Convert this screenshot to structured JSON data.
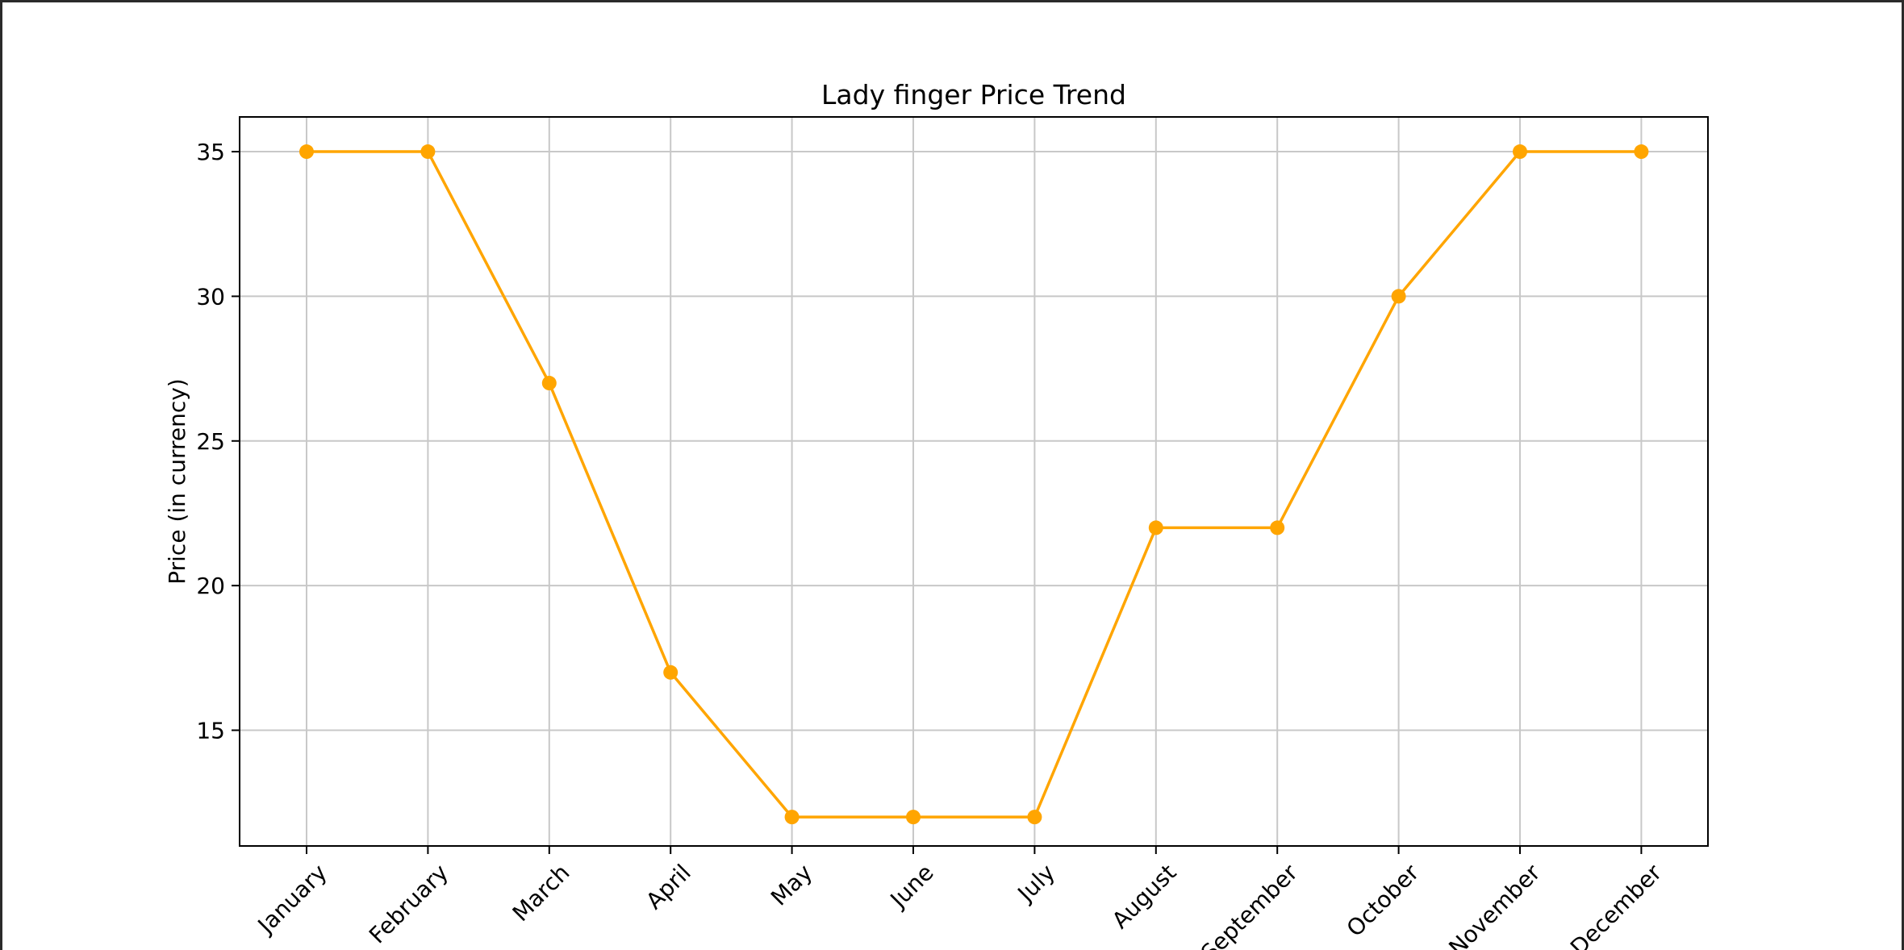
{
  "chart_data": {
    "type": "line",
    "title": "Lady finger Price Trend",
    "xlabel": "",
    "ylabel": "Price (in currency)",
    "categories": [
      "January",
      "February",
      "March",
      "April",
      "May",
      "June",
      "July",
      "August",
      "September",
      "October",
      "November",
      "December"
    ],
    "series": [
      {
        "values": [
          35,
          35,
          27,
          17,
          12,
          12,
          12,
          22,
          22,
          30,
          35,
          35
        ],
        "color": "#FFA500",
        "marker": "circle"
      }
    ],
    "yticks": [
      15,
      20,
      25,
      30,
      35
    ],
    "ylim": [
      11,
      36.2
    ],
    "grid": true,
    "legend": "none"
  }
}
